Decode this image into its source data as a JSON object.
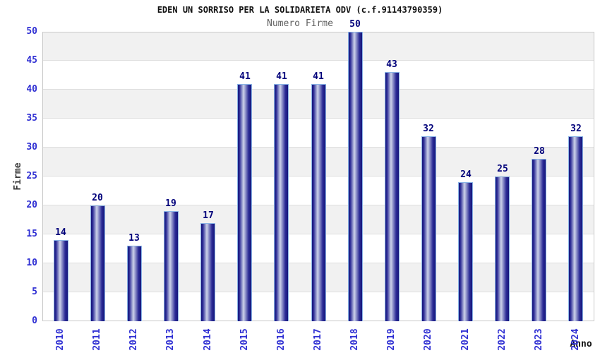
{
  "header": {
    "title": "EDEN UN SORRISO PER LA SOLIDARIETA ODV (c.f.91143790359)",
    "subtitle": "Numero Firme"
  },
  "chart_data": {
    "type": "bar",
    "title": "EDEN UN SORRISO PER LA SOLIDARIETA ODV (c.f.91143790359)",
    "subtitle": "Numero Firme",
    "xlabel": "Anno",
    "ylabel": "Firme",
    "categories": [
      "2010",
      "2011",
      "2012",
      "2013",
      "2014",
      "2015",
      "2016",
      "2017",
      "2018",
      "2019",
      "2020",
      "2021",
      "2022",
      "2023",
      "2024"
    ],
    "values": [
      14,
      20,
      13,
      19,
      17,
      41,
      41,
      41,
      50,
      43,
      32,
      24,
      25,
      28,
      32
    ],
    "ylim": [
      0,
      50
    ],
    "ytick_step": 5,
    "yticks": [
      0,
      5,
      10,
      15,
      20,
      25,
      30,
      35,
      40,
      45,
      50
    ],
    "grid": "alternating-horizontal-bands",
    "legend": "none",
    "bar_value_labels": true,
    "style": {
      "band_color_light": "#ffffff",
      "band_color_gray": "#f1f1f1",
      "gridline_color": "#dedede",
      "plot_border_color": "#c9c9c9",
      "bar_edge_dark": "#15157a",
      "bar_center_light": "#cdd3ea",
      "bar_outline": "#8ab4e6",
      "tick_label_color": "#2f2fd3",
      "value_label_color": "#00007a",
      "title_color": "#111111",
      "subtitle_color": "#5f5f5f"
    }
  }
}
